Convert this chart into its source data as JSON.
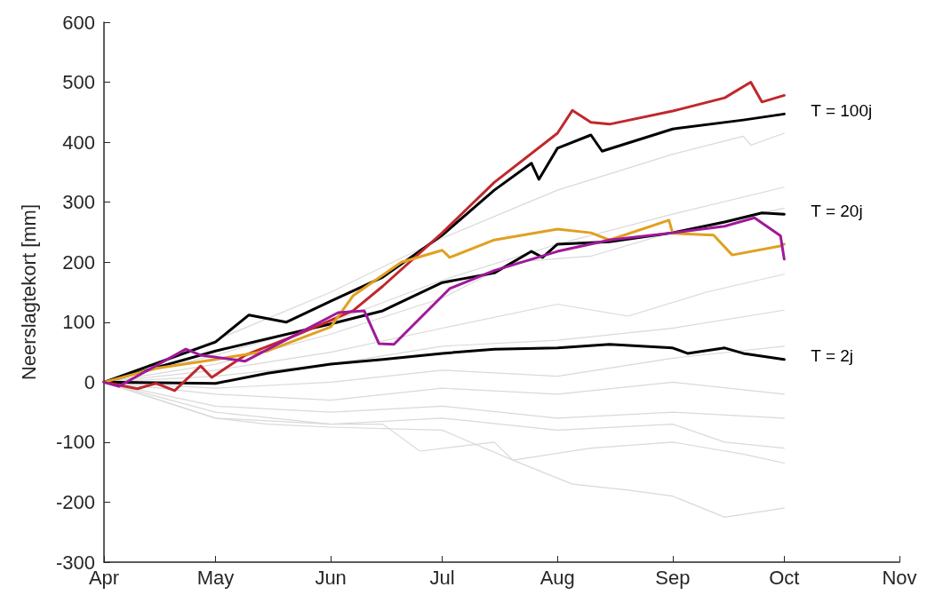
{
  "chart_data": {
    "type": "line",
    "ylabel": "Neerslagtekort [mm]",
    "xlim": [
      "--04-01",
      "--11-01"
    ],
    "xticks": [
      {
        "value": "--04-01",
        "label": "Apr"
      },
      {
        "value": "--05-01",
        "label": "May"
      },
      {
        "value": "--06-01",
        "label": "Jun"
      },
      {
        "value": "--07-01",
        "label": "Jul"
      },
      {
        "value": "--08-01",
        "label": "Aug"
      },
      {
        "value": "--09-01",
        "label": "Sep"
      },
      {
        "value": "--10-01",
        "label": "Oct"
      },
      {
        "value": "--11-01",
        "label": "Nov"
      }
    ],
    "ylim": [
      -300,
      600
    ],
    "yticks": [
      -300,
      -200,
      -100,
      0,
      100,
      200,
      300,
      400,
      500,
      600
    ],
    "grid": false,
    "legend": false,
    "marker": "none",
    "line_style": "solid",
    "series": [
      {
        "color": "#d9d9d9",
        "x": [
          "--04-01",
          "--05-01",
          "--06-01",
          "--07-01",
          "--08-01",
          "--09-01",
          "--09-20",
          "--09-22",
          "--10-01"
        ],
        "values": [
          0,
          70,
          150,
          240,
          320,
          380,
          410,
          395,
          415
        ]
      },
      {
        "color": "#d9d9d9",
        "x": [
          "--04-01",
          "--05-01",
          "--06-01",
          "--07-01",
          "--08-01",
          "--09-01",
          "--10-01"
        ],
        "values": [
          0,
          45,
          100,
          170,
          230,
          280,
          325
        ]
      },
      {
        "color": "#d9d9d9",
        "x": [
          "--04-01",
          "--05-01",
          "--06-01",
          "--07-01",
          "--07-20",
          "--08-10",
          "--09-01",
          "--10-01"
        ],
        "values": [
          0,
          30,
          80,
          140,
          200,
          210,
          250,
          290
        ]
      },
      {
        "color": "#d9d9d9",
        "x": [
          "--04-01",
          "--05-01",
          "--06-01",
          "--07-01",
          "--08-01",
          "--08-20",
          "--09-10",
          "--10-01"
        ],
        "values": [
          0,
          20,
          50,
          90,
          130,
          110,
          150,
          180
        ]
      },
      {
        "color": "#d9d9d9",
        "x": [
          "--04-01",
          "--05-01",
          "--06-01",
          "--07-01",
          "--08-01",
          "--09-01",
          "--10-01"
        ],
        "values": [
          0,
          10,
          30,
          60,
          70,
          90,
          120
        ]
      },
      {
        "color": "#d9d9d9",
        "x": [
          "--04-01",
          "--05-01",
          "--06-01",
          "--07-01",
          "--08-01",
          "--09-01",
          "--10-01"
        ],
        "values": [
          0,
          -10,
          0,
          20,
          10,
          40,
          60
        ]
      },
      {
        "color": "#d9d9d9",
        "x": [
          "--04-01",
          "--05-01",
          "--06-01",
          "--07-01",
          "--08-01",
          "--09-01",
          "--10-01"
        ],
        "values": [
          0,
          -20,
          -30,
          -10,
          -20,
          0,
          -20
        ]
      },
      {
        "color": "#d9d9d9",
        "x": [
          "--04-01",
          "--05-01",
          "--06-01",
          "--07-01",
          "--08-01",
          "--09-01",
          "--10-01"
        ],
        "values": [
          0,
          -40,
          -50,
          -40,
          -60,
          -50,
          -60
        ]
      },
      {
        "color": "#d9d9d9",
        "x": [
          "--04-01",
          "--05-01",
          "--06-01",
          "--07-01",
          "--08-01",
          "--09-01",
          "--09-15",
          "--10-01"
        ],
        "values": [
          0,
          -50,
          -70,
          -60,
          -80,
          -70,
          -100,
          -110
        ]
      },
      {
        "color": "#d9d9d9",
        "x": [
          "--04-01",
          "--05-01",
          "--06-01",
          "--06-15",
          "--06-25",
          "--07-15",
          "--07-20",
          "--08-10",
          "--09-01",
          "--09-20",
          "--10-01"
        ],
        "values": [
          0,
          -60,
          -70,
          -70,
          -115,
          -100,
          -130,
          -110,
          -100,
          -120,
          -135
        ]
      },
      {
        "color": "#d9d9d9",
        "x": [
          "--04-01",
          "--05-01",
          "--05-15",
          "--06-01",
          "--07-01",
          "--07-20",
          "--08-05",
          "--08-20",
          "--09-01",
          "--09-15",
          "--10-01"
        ],
        "values": [
          0,
          -60,
          -70,
          -75,
          -80,
          -130,
          -170,
          -180,
          -190,
          -225,
          -210
        ]
      },
      {
        "name": "T = 100j",
        "color": "#000000",
        "x": [
          "--04-01",
          "--05-01",
          "--05-10",
          "--05-20",
          "--06-01",
          "--06-15",
          "--07-01",
          "--07-15",
          "--07-25",
          "--07-27",
          "--08-01",
          "--08-10",
          "--08-13",
          "--09-01",
          "--09-20",
          "--10-01"
        ],
        "values": [
          0,
          67,
          112,
          100,
          135,
          175,
          245,
          320,
          365,
          338,
          390,
          412,
          385,
          422,
          437,
          447
        ]
      },
      {
        "name": "T = 20j",
        "color": "#000000",
        "x": [
          "--04-01",
          "--05-01",
          "--06-01",
          "--06-15",
          "--07-01",
          "--07-15",
          "--07-25",
          "--07-28",
          "--08-01",
          "--08-15",
          "--09-01",
          "--09-15",
          "--09-25",
          "--10-01"
        ],
        "values": [
          0,
          52,
          97,
          119,
          166,
          182,
          218,
          208,
          230,
          234,
          249,
          267,
          282,
          280
        ]
      },
      {
        "name": "T = 2j",
        "color": "#000000",
        "x": [
          "--04-01",
          "--05-01",
          "--05-15",
          "--06-01",
          "--06-15",
          "--07-01",
          "--07-15",
          "--08-01",
          "--08-15",
          "--09-01",
          "--09-05",
          "--09-15",
          "--09-20",
          "--10-01"
        ],
        "values": [
          0,
          -2,
          15,
          30,
          38,
          48,
          55,
          57,
          63,
          57,
          48,
          57,
          48,
          38
        ]
      },
      {
        "color": "#c0282d",
        "x": [
          "--04-01",
          "--04-10",
          "--04-15",
          "--04-20",
          "--04-27",
          "--04-30",
          "--05-09",
          "--05-23",
          "--06-07",
          "--06-15",
          "--07-01",
          "--07-15",
          "--08-01",
          "--08-05",
          "--08-10",
          "--08-15",
          "--09-01",
          "--09-15",
          "--09-22",
          "--09-25",
          "--10-01"
        ],
        "values": [
          0,
          -11,
          -2,
          -14,
          27,
          8,
          45,
          79,
          119,
          160,
          249,
          333,
          415,
          453,
          433,
          430,
          452,
          474,
          500,
          467,
          478
        ]
      },
      {
        "color": "#e0a020",
        "x": [
          "--04-01",
          "--04-15",
          "--05-01",
          "--05-15",
          "--06-01",
          "--06-07",
          "--06-20",
          "--07-01",
          "--07-03",
          "--07-15",
          "--08-01",
          "--08-10",
          "--08-15",
          "--08-31",
          "--09-01",
          "--09-12",
          "--09-17",
          "--09-30",
          "--10-01"
        ],
        "values": [
          0,
          23,
          38,
          52,
          92,
          144,
          200,
          220,
          208,
          237,
          255,
          249,
          237,
          270,
          248,
          245,
          212,
          227,
          230
        ]
      },
      {
        "color": "#a0189a",
        "x": [
          "--04-01",
          "--04-05",
          "--04-23",
          "--04-27",
          "--05-09",
          "--06-03",
          "--06-10",
          "--06-14",
          "--06-18",
          "--07-03",
          "--07-15",
          "--08-01",
          "--08-15",
          "--09-01",
          "--09-15",
          "--09-23",
          "--09-30",
          "--10-01"
        ],
        "values": [
          0,
          -7,
          55,
          45,
          35,
          116,
          119,
          64,
          63,
          156,
          186,
          218,
          237,
          249,
          260,
          274,
          244,
          205
        ]
      }
    ]
  }
}
